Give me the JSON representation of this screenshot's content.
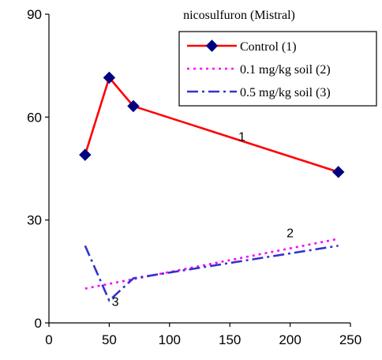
{
  "chart_data": {
    "type": "line",
    "title": "nicosulfuron (Mistral)",
    "xlabel": "",
    "ylabel": "",
    "xlim": [
      0,
      250
    ],
    "ylim": [
      0,
      90
    ],
    "x_ticks": [
      "0",
      "50",
      "100",
      "150",
      "200",
      "250"
    ],
    "y_ticks": [
      "0",
      "30",
      "60",
      "90"
    ],
    "grid": false,
    "legend_position": "top-right",
    "series": [
      {
        "name": "Control (1)",
        "color": "#ff0000",
        "marker": "diamond",
        "style": "solid",
        "points": [
          [
            30,
            49
          ],
          [
            50,
            71.5
          ],
          [
            70,
            63.2
          ],
          [
            240,
            44
          ]
        ]
      },
      {
        "name": "0.1 mg/kg soil (2)",
        "color": "#ff00ff",
        "marker": "none",
        "style": "dotted",
        "points": [
          [
            30,
            10
          ],
          [
            240,
            24.5
          ]
        ]
      },
      {
        "name": "0.5 mg/kg soil (3)",
        "color": "#3333cc",
        "marker": "none",
        "style": "dashdot",
        "points": [
          [
            30,
            22.5
          ],
          [
            50,
            6.5
          ],
          [
            70,
            13
          ],
          [
            240,
            22.5
          ]
        ]
      }
    ],
    "annotations": [
      {
        "text": "1",
        "x": 160,
        "y": 53
      },
      {
        "text": "2",
        "x": 200,
        "y": 25
      },
      {
        "text": "3",
        "x": 55,
        "y": 5
      }
    ]
  }
}
